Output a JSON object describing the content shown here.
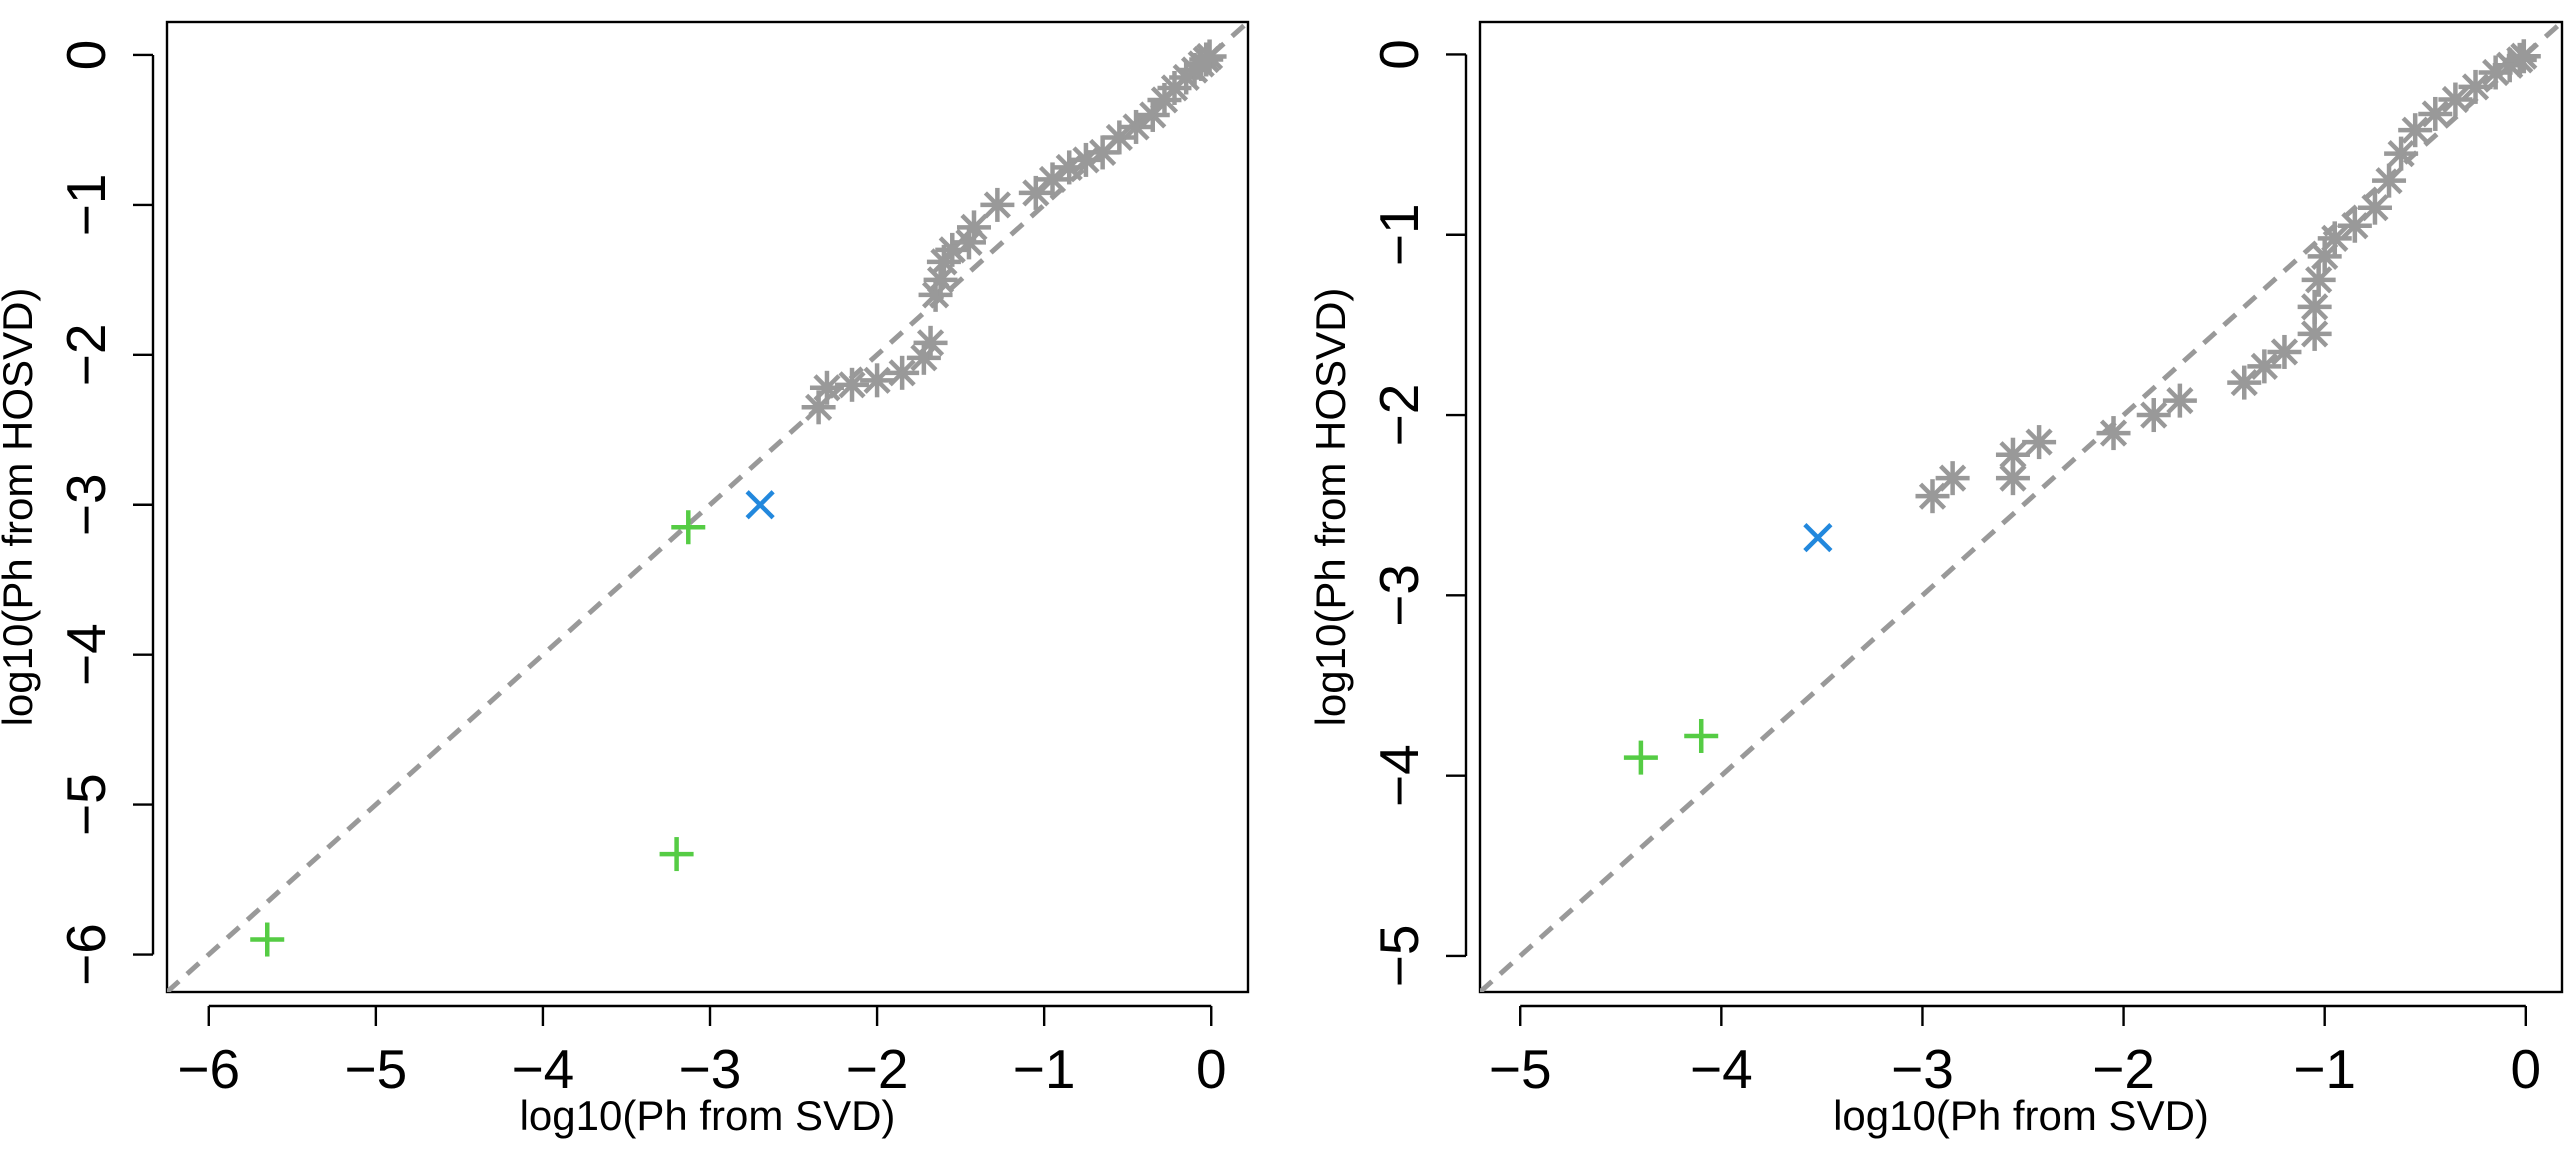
{
  "chart_data": [
    {
      "type": "scatter",
      "panel": "left",
      "title": "",
      "xlabel": "log10(Ph from SVD)",
      "ylabel": "log10(Ph from HOSVD)",
      "xlim": [
        -6.25,
        0.22
      ],
      "ylim": [
        -6.25,
        0.22
      ],
      "x_ticks": [
        -6,
        -5,
        -4,
        -3,
        -2,
        -1,
        0
      ],
      "y_ticks": [
        -6,
        -5,
        -4,
        -3,
        -2,
        -1,
        0
      ],
      "x_tick_labels": [
        "−6",
        "−5",
        "−4",
        "−3",
        "−2",
        "−1",
        "0"
      ],
      "y_tick_labels": [
        "−6",
        "−5",
        "−4",
        "−3",
        "−2",
        "−1",
        "0"
      ],
      "reference_line": {
        "slope": 1,
        "intercept": 0,
        "style": "dashed",
        "color": "#999999"
      },
      "series": [
        {
          "name": "gray-asterisk",
          "marker": "asterisk",
          "color": "#999999",
          "points": [
            [
              -2.35,
              -2.35
            ],
            [
              -2.3,
              -2.22
            ],
            [
              -2.15,
              -2.2
            ],
            [
              -2.0,
              -2.17
            ],
            [
              -1.85,
              -2.12
            ],
            [
              -1.72,
              -2.02
            ],
            [
              -1.68,
              -1.92
            ],
            [
              -1.65,
              -1.6
            ],
            [
              -1.62,
              -1.5
            ],
            [
              -1.6,
              -1.38
            ],
            [
              -1.55,
              -1.3
            ],
            [
              -1.45,
              -1.25
            ],
            [
              -1.42,
              -1.15
            ],
            [
              -1.28,
              -1.0
            ],
            [
              -1.05,
              -0.92
            ],
            [
              -0.95,
              -0.83
            ],
            [
              -0.85,
              -0.75
            ],
            [
              -0.75,
              -0.7
            ],
            [
              -0.65,
              -0.65
            ],
            [
              -0.55,
              -0.55
            ],
            [
              -0.45,
              -0.48
            ],
            [
              -0.35,
              -0.4
            ],
            [
              -0.28,
              -0.3
            ],
            [
              -0.22,
              -0.22
            ],
            [
              -0.15,
              -0.15
            ],
            [
              -0.1,
              -0.1
            ],
            [
              -0.06,
              -0.06
            ],
            [
              -0.03,
              -0.03
            ],
            [
              -0.01,
              -0.01
            ]
          ]
        },
        {
          "name": "blue-cross",
          "marker": "x",
          "color": "#2288dd",
          "points": [
            [
              -2.7,
              -3.0
            ]
          ]
        },
        {
          "name": "green-plus",
          "marker": "plus",
          "color": "#55cc44",
          "points": [
            [
              -3.13,
              -3.15
            ],
            [
              -3.2,
              -5.33
            ],
            [
              -5.65,
              -5.9
            ]
          ]
        }
      ]
    },
    {
      "type": "scatter",
      "panel": "right",
      "title": "",
      "xlabel": "log10(Ph from SVD)",
      "ylabel": "log10(Ph from HOSVD)",
      "xlim": [
        -5.2,
        0.18
      ],
      "ylim": [
        -5.2,
        0.18
      ],
      "x_ticks": [
        -5,
        -4,
        -3,
        -2,
        -1,
        0
      ],
      "y_ticks": [
        -5,
        -4,
        -3,
        -2,
        -1,
        0
      ],
      "x_tick_labels": [
        "−5",
        "−4",
        "−3",
        "−2",
        "−1",
        "0"
      ],
      "y_tick_labels": [
        "−5",
        "−4",
        "−3",
        "−2",
        "−1",
        "0"
      ],
      "reference_line": {
        "slope": 1,
        "intercept": 0,
        "style": "dashed",
        "color": "#999999"
      },
      "series": [
        {
          "name": "gray-asterisk",
          "marker": "asterisk",
          "color": "#999999",
          "points": [
            [
              -2.95,
              -2.45
            ],
            [
              -2.85,
              -2.35
            ],
            [
              -2.55,
              -2.35
            ],
            [
              -2.55,
              -2.22
            ],
            [
              -2.42,
              -2.15
            ],
            [
              -2.05,
              -2.1
            ],
            [
              -1.85,
              -2.0
            ],
            [
              -1.72,
              -1.92
            ],
            [
              -1.4,
              -1.82
            ],
            [
              -1.3,
              -1.73
            ],
            [
              -1.2,
              -1.65
            ],
            [
              -1.05,
              -1.55
            ],
            [
              -1.05,
              -1.4
            ],
            [
              -1.03,
              -1.25
            ],
            [
              -1.0,
              -1.12
            ],
            [
              -0.95,
              -1.02
            ],
            [
              -0.85,
              -0.95
            ],
            [
              -0.75,
              -0.85
            ],
            [
              -0.68,
              -0.7
            ],
            [
              -0.62,
              -0.55
            ],
            [
              -0.55,
              -0.42
            ],
            [
              -0.45,
              -0.33
            ],
            [
              -0.35,
              -0.25
            ],
            [
              -0.25,
              -0.18
            ],
            [
              -0.15,
              -0.1
            ],
            [
              -0.08,
              -0.06
            ],
            [
              -0.03,
              -0.03
            ],
            [
              -0.01,
              -0.01
            ]
          ]
        },
        {
          "name": "blue-cross",
          "marker": "x",
          "color": "#2288dd",
          "points": [
            [
              -3.52,
              -2.68
            ]
          ]
        },
        {
          "name": "green-plus",
          "marker": "plus",
          "color": "#55cc44",
          "points": [
            [
              -4.1,
              -3.78
            ],
            [
              -4.4,
              -3.9
            ]
          ]
        }
      ]
    }
  ]
}
